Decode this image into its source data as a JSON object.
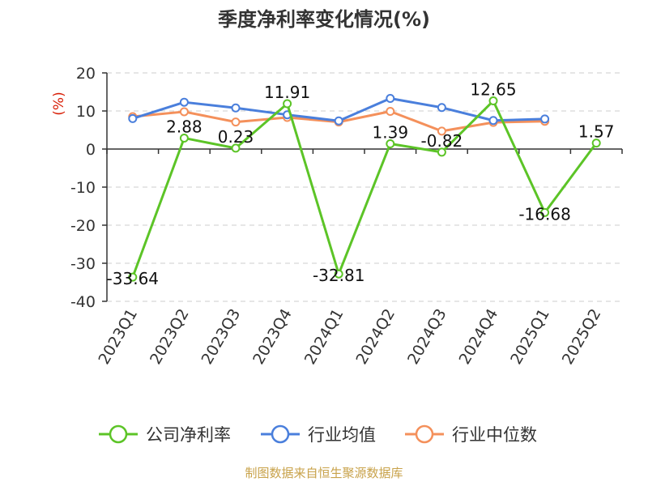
{
  "chart_data": {
    "type": "line",
    "title": "季度净利率变化情况(%)",
    "ylabel": "(%)",
    "ylim": [
      -40,
      20
    ],
    "yticks": [
      20,
      10,
      0,
      -10,
      -20,
      -30,
      -40
    ],
    "grid": true,
    "legend_position": "bottom",
    "categories": [
      "2023Q1",
      "2023Q2",
      "2023Q3",
      "2023Q4",
      "2024Q1",
      "2024Q2",
      "2024Q3",
      "2024Q4",
      "2025Q1",
      "2025Q2"
    ],
    "series": [
      {
        "name": "公司净利率",
        "color": "#5cc427",
        "values": [
          -33.64,
          2.88,
          0.23,
          11.91,
          -32.81,
          1.39,
          -0.82,
          12.65,
          -16.68,
          1.57
        ],
        "labels": [
          "-33.64",
          "2.88",
          "0.23",
          "11.91",
          "-32.81",
          "1.39",
          "-0.82",
          "12.65",
          "-16.68",
          "1.57"
        ]
      },
      {
        "name": "行业均值",
        "color": "#4a7fdc",
        "values": [
          8.0,
          12.3,
          10.8,
          9.0,
          7.4,
          13.3,
          10.9,
          7.5,
          7.9,
          null
        ]
      },
      {
        "name": "行业中位数",
        "color": "#f4905b",
        "values": [
          8.5,
          9.8,
          7.1,
          8.3,
          7.1,
          9.9,
          4.7,
          7.0,
          7.3,
          null
        ]
      }
    ]
  },
  "footer": {
    "source": "制图数据来自恒生聚源数据库"
  }
}
